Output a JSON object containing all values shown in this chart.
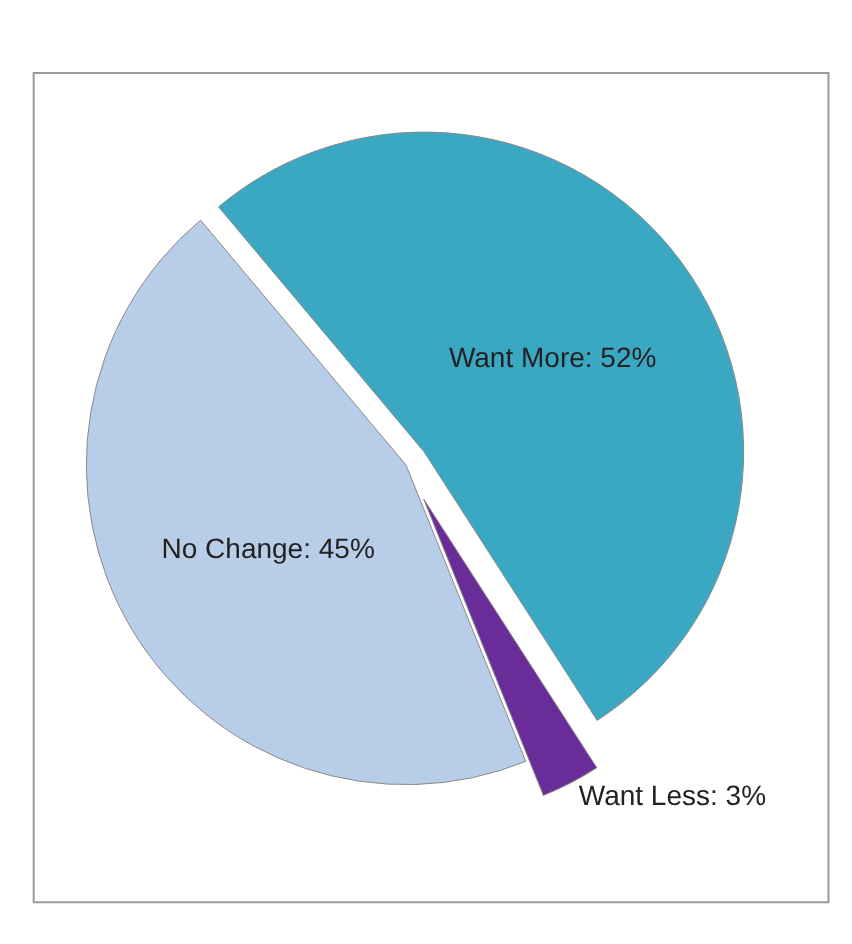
{
  "chart_data": {
    "type": "pie",
    "categories": [
      "Want More",
      "Want Less",
      "No Change"
    ],
    "values": [
      52,
      3,
      45
    ],
    "value_labels": [
      "52%",
      "3%",
      "45%"
    ],
    "colors": [
      "#3aa8c3",
      "#6a2c98",
      "#b8cde8"
    ],
    "legend": false
  }
}
